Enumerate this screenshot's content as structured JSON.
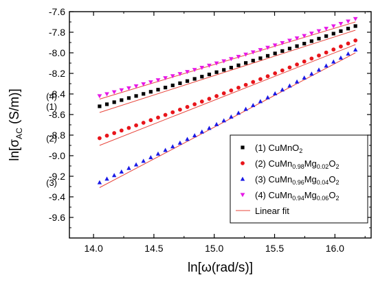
{
  "chart_data": {
    "type": "scatter",
    "xlabel_main": "ln[ω(rad/s)]",
    "ylabel_main": "ln[σ",
    "ylabel_sub": "AC",
    "ylabel_tail": " (S/m)]",
    "xlim": [
      13.8,
      16.3
    ],
    "ylim": [
      -9.8,
      -7.6
    ],
    "x_ticks": [
      "14.0",
      "14.5",
      "15.0",
      "15.5",
      "16.0"
    ],
    "y_ticks": [
      "-7.6",
      "-7.8",
      "-8.0",
      "-8.2",
      "-8.4",
      "-8.6",
      "-8.8",
      "-9.0",
      "-9.2",
      "-9.4",
      "-9.6"
    ],
    "legend_position": "bottom-right",
    "series": [
      {
        "tag": "(1)",
        "legend_parts": [
          "(1) CuMnO",
          "2",
          "",
          "",
          "",
          ""
        ],
        "marker": "square",
        "color": "#000000",
        "x_start": 14.05,
        "x_end": 16.17,
        "points": 36,
        "y_start": -8.52,
        "y_end": -7.74,
        "fit": [
          [
            14.05,
            -8.58
          ],
          [
            16.17,
            -7.78
          ]
        ]
      },
      {
        "tag": "(2)",
        "legend_parts": [
          "(2) CuMn",
          "0.98",
          "Mg",
          "0.02",
          "O",
          "2"
        ],
        "marker": "circle",
        "color": "#e8151b",
        "x_start": 14.05,
        "x_end": 16.17,
        "points": 36,
        "y_start": -8.83,
        "y_end": -7.88,
        "fit": [
          [
            14.05,
            -8.9
          ],
          [
            16.17,
            -7.92
          ]
        ]
      },
      {
        "tag": "(3)",
        "legend_parts": [
          "(3) CuMn",
          "0.96",
          "Mg",
          "0.04",
          "O",
          "2"
        ],
        "marker": "triangle-up",
        "color": "#1a1ae6",
        "x_start": 14.05,
        "x_end": 16.17,
        "points": 36,
        "y_start": -9.26,
        "y_end": -7.97,
        "fit": [
          [
            14.05,
            -9.31
          ],
          [
            16.17,
            -8.0
          ]
        ]
      },
      {
        "tag": "(4)",
        "legend_parts": [
          "(4) CuMn",
          "0.94",
          "Mg",
          "0.06",
          "O",
          "2"
        ],
        "marker": "triangle-down",
        "color": "#e61ae6",
        "x_start": 14.05,
        "x_end": 16.17,
        "points": 36,
        "y_start": -8.42,
        "y_end": -7.67,
        "fit": [
          [
            14.05,
            -8.45
          ],
          [
            16.17,
            -7.7
          ]
        ]
      }
    ],
    "fit_legend": "Linear fit",
    "fit_color": "#e8443a"
  }
}
